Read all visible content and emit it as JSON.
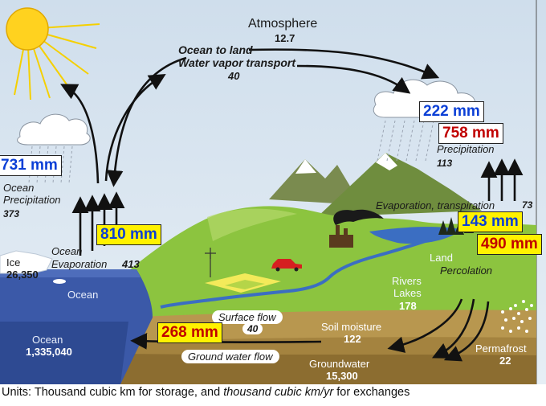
{
  "atmosphere": {
    "label": "Atmosphere",
    "value": "12.7"
  },
  "ocean_to_land": {
    "line1": "Ocean to land",
    "line2": "Water vapor transport",
    "value": "40"
  },
  "land_precip": {
    "label": "Precipitation",
    "value": "113"
  },
  "ocean_precip": {
    "line1": "Ocean",
    "line2": "Precipitation",
    "value": "373"
  },
  "ocean_evap": {
    "line1": "Ocean",
    "line2": "Evaporation",
    "value": "413"
  },
  "evapotranspiration": {
    "label": "Evaporation, transpiration",
    "value": "73"
  },
  "ice": {
    "label": "Ice",
    "value": "26,350"
  },
  "ocean_surface": {
    "label": "Ocean"
  },
  "ocean_storage": {
    "label": "Ocean",
    "value": "1,335,040"
  },
  "land": {
    "label": "Land"
  },
  "percolation": {
    "label": "Percolation"
  },
  "rivers_lakes": {
    "line1": "Rivers",
    "line2": "Lakes",
    "value": "178"
  },
  "surface_flow": {
    "label": "Surface flow",
    "value": "40"
  },
  "soil_moisture": {
    "label": "Soil moisture",
    "value": "122"
  },
  "permafrost": {
    "label": "Permafrost",
    "value": "22"
  },
  "groundwater_flow": {
    "label": "Ground water flow"
  },
  "groundwater": {
    "label": "Groundwater",
    "value": "15,300"
  },
  "overlays": {
    "ocean_precip_mm": "731 mm",
    "ocean_evap_mm": "810 mm",
    "land_precip_blue_mm": "222 mm",
    "land_precip_red_mm": "758 mm",
    "land_evap_mm": "143 mm",
    "land_evap_red_mm": "490 mm",
    "surface_flow_mm": "268 mm"
  },
  "units_note": {
    "part1": "Units: Thousand cubic km for storage, and ",
    "part2": "thousand cubic km/yr",
    "part3": " for exchanges"
  },
  "colors": {
    "sky": "#dde8f2",
    "ocean": "#3b59a8",
    "land_green": "#8cc43f",
    "soil": "#9a7a3e",
    "overlay_blue": "#0b3fd6",
    "overlay_red": "#c00000",
    "overlay_yellow": "#fff200"
  }
}
